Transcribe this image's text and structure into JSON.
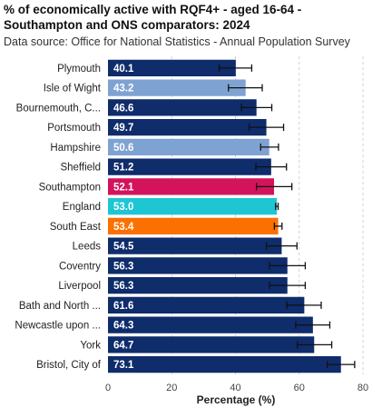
{
  "title": "% of economically active with RQF4+ - aged 16-64 - Southampton and ONS comparators: 2024",
  "subtitle": "Data source: Office for National Statistics - Annual Population Survey",
  "colors": {
    "default": "#0f2c6b",
    "light": "#7ea3d2",
    "southampton": "#d3135c",
    "england": "#1ec6d3",
    "south_east": "#fb7000",
    "error_bar": "#111111",
    "grid": "#d0d0d0"
  },
  "chart_data": {
    "type": "bar",
    "orientation": "horizontal",
    "title": "% of economically active with RQF4+ - aged 16-64 - Southampton and ONS comparators: 2024",
    "subtitle": "Data source: Office for National Statistics - Annual Population Survey",
    "xlabel": "Percentage (%)",
    "ylabel": "",
    "xlim": [
      0,
      80
    ],
    "xticks": [
      0,
      20,
      40,
      60,
      80
    ],
    "grid": "vertical dashed",
    "categories": [
      "Plymouth",
      "Isle of Wight",
      "Bournemouth, C...",
      "Portsmouth",
      "Hampshire",
      "Sheffield",
      "Southampton",
      "England",
      "South East",
      "Leeds",
      "Coventry",
      "Liverpool",
      "Bath and North ...",
      "Newcastle upon ...",
      "York",
      "Bristol, City of"
    ],
    "value_labels": [
      "40.1",
      "43.2",
      "46.6",
      "49.7",
      "50.6",
      "51.2",
      "52.1",
      "53.0",
      "53.4",
      "54.5",
      "56.3",
      "56.3",
      "61.6",
      "64.3",
      "64.7",
      "73.1"
    ],
    "values": [
      40.1,
      43.2,
      46.6,
      49.7,
      50.6,
      51.2,
      52.1,
      53.0,
      53.4,
      54.5,
      56.3,
      56.3,
      61.6,
      64.3,
      64.7,
      73.1
    ],
    "ci_low": [
      34.9,
      37.8,
      41.9,
      44.3,
      47.9,
      46.4,
      46.6,
      52.6,
      52.2,
      49.7,
      50.7,
      50.7,
      56.1,
      58.9,
      59.4,
      68.8
    ],
    "ci_high": [
      45.1,
      48.4,
      51.4,
      55.1,
      53.5,
      56.0,
      57.7,
      53.4,
      54.6,
      59.3,
      61.9,
      61.9,
      66.9,
      69.6,
      70.2,
      77.4
    ],
    "bar_colors": [
      "default",
      "light",
      "default",
      "default",
      "light",
      "default",
      "southampton",
      "england",
      "south_east",
      "default",
      "default",
      "default",
      "default",
      "default",
      "default",
      "default"
    ]
  }
}
